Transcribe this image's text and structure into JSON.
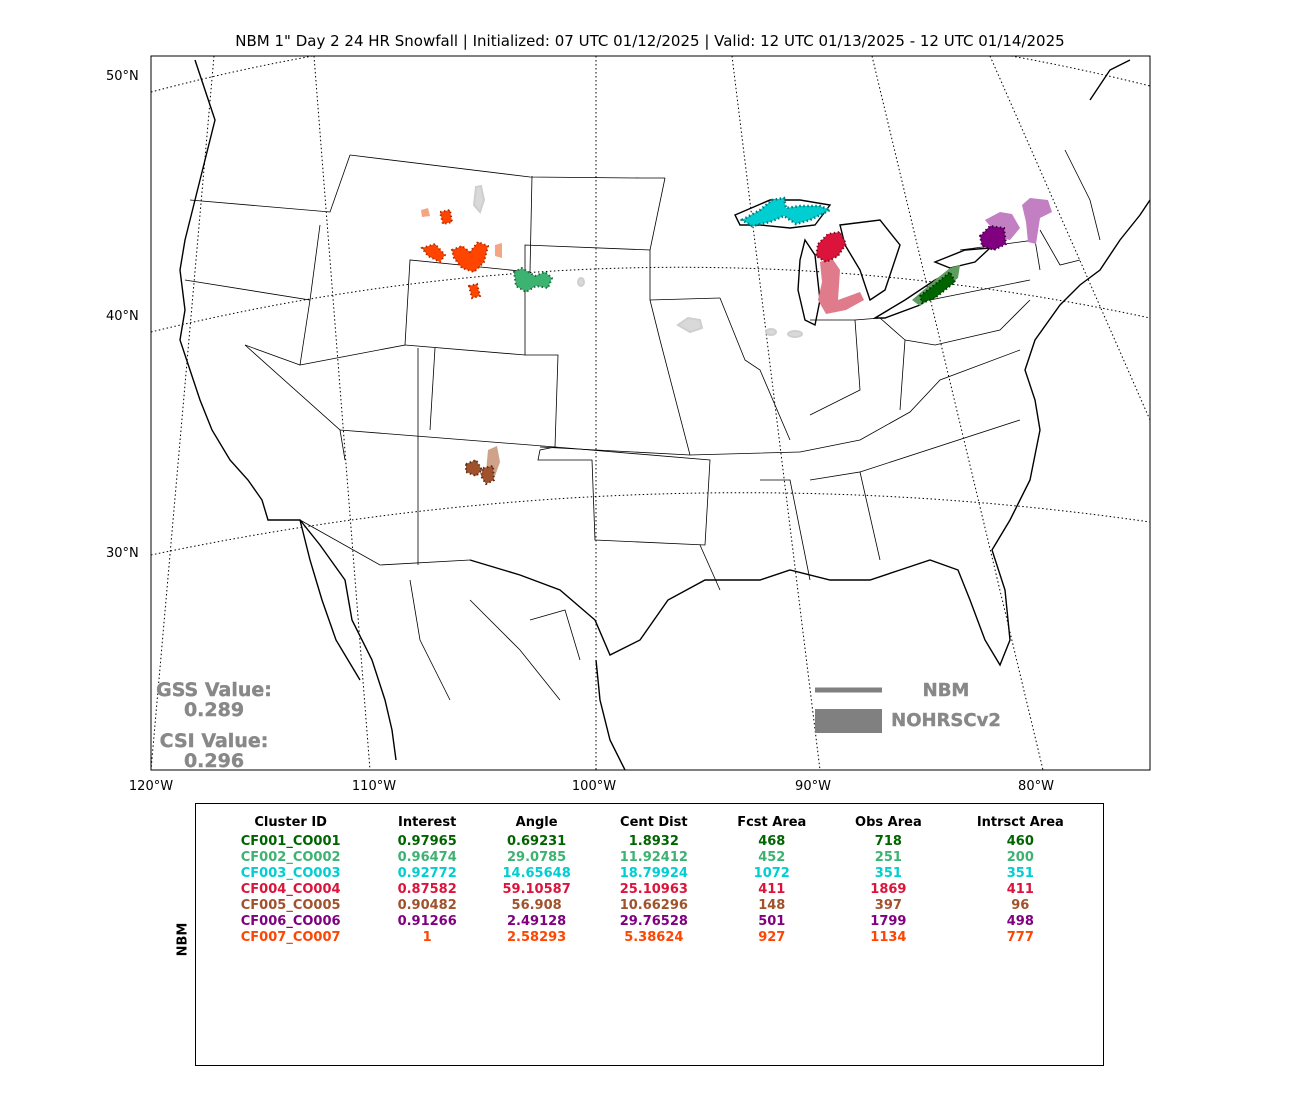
{
  "title": "NBM 1\" Day 2 24 HR Snowfall | Initialized: 07 UTC 01/12/2025 | Valid: 12 UTC 01/13/2025 - 12 UTC 01/14/2025",
  "map": {
    "lat_labels": [
      "50°N",
      "40°N",
      "30°N"
    ],
    "lon_labels": [
      "120°W",
      "110°W",
      "100°W",
      "90°W",
      "80°W"
    ],
    "gss_label": "GSS Value:",
    "gss_value": "0.289",
    "csi_label": "CSI Value:",
    "csi_value": "0.296",
    "legend": {
      "line_label": "NBM",
      "fill_label": "NOHRSCv2",
      "color": "#808080"
    },
    "unmatched_color": "#d9d9d9"
  },
  "table": {
    "side_label": "NBM",
    "headers": [
      "Cluster ID",
      "Interest",
      "Angle",
      "Cent Dist",
      "Fcst Area",
      "Obs Area",
      "Intrsct Area"
    ],
    "rows": [
      {
        "color": "#006400",
        "cells": [
          "CF001_CO001",
          "0.97965",
          "0.69231",
          "1.8932",
          "468",
          "718",
          "460"
        ]
      },
      {
        "color": "#3cb371",
        "cells": [
          "CF002_CO002",
          "0.96474",
          "29.0785",
          "11.92412",
          "452",
          "251",
          "200"
        ]
      },
      {
        "color": "#00ced1",
        "cells": [
          "CF003_CO003",
          "0.92772",
          "14.65648",
          "18.79924",
          "1072",
          "351",
          "351"
        ]
      },
      {
        "color": "#dc143c",
        "cells": [
          "CF004_CO004",
          "0.87582",
          "59.10587",
          "25.10963",
          "411",
          "1869",
          "411"
        ]
      },
      {
        "color": "#a0522d",
        "cells": [
          "CF005_CO005",
          "0.90482",
          "56.908",
          "10.66296",
          "148",
          "397",
          "96"
        ]
      },
      {
        "color": "#800080",
        "cells": [
          "CF006_CO006",
          "0.91266",
          "2.49128",
          "29.76528",
          "501",
          "1799",
          "498"
        ]
      },
      {
        "color": "#ff4500",
        "cells": [
          "CF007_CO007",
          "1",
          "2.58293",
          "5.38624",
          "927",
          "1134",
          "777"
        ]
      }
    ]
  }
}
